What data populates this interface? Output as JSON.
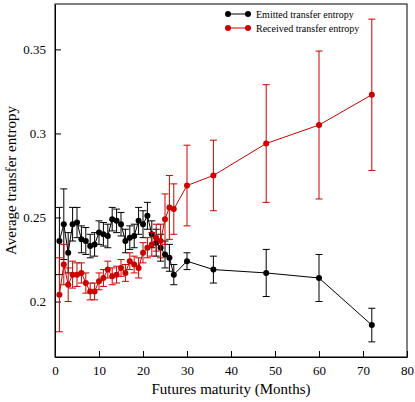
{
  "chart_data": {
    "type": "line",
    "x_label": "Futures maturity (Months)",
    "y_label": "Average transfer entropy",
    "x": [
      1,
      2,
      3,
      4,
      5,
      6,
      7,
      8,
      9,
      10,
      11,
      12,
      13,
      14,
      15,
      16,
      17,
      18,
      19,
      20,
      21,
      22,
      23,
      24,
      25,
      26,
      27,
      30,
      36,
      48,
      60,
      72
    ],
    "series": [
      {
        "name": "Emitted transfer entropy",
        "color": "#000000",
        "marker": "circle",
        "values": [
          0.236,
          0.246,
          0.229,
          0.246,
          0.247,
          0.237,
          0.236,
          0.233,
          0.234,
          0.241,
          0.24,
          0.239,
          0.249,
          0.248,
          0.246,
          0.236,
          0.238,
          0.239,
          0.248,
          0.246,
          0.251,
          0.24,
          0.235,
          0.232,
          0.228,
          0.226,
          0.216,
          0.224,
          0.219,
          0.217,
          0.214,
          0.186
        ],
        "errors": [
          0.02,
          0.021,
          0.012,
          0.01,
          0.009,
          0.008,
          0.008,
          0.007,
          0.007,
          0.007,
          0.007,
          0.007,
          0.007,
          0.007,
          0.007,
          0.007,
          0.007,
          0.007,
          0.008,
          0.008,
          0.008,
          0.008,
          0.008,
          0.008,
          0.008,
          0.008,
          0.006,
          0.005,
          0.008,
          0.014,
          0.014,
          0.01
        ]
      },
      {
        "name": "Received transfer entropy",
        "color": "#cc0000",
        "marker": "circle",
        "values": [
          0.204,
          0.222,
          0.21,
          0.216,
          0.216,
          0.217,
          0.211,
          0.206,
          0.206,
          0.212,
          0.214,
          0.219,
          0.215,
          0.216,
          0.22,
          0.217,
          0.224,
          0.222,
          0.22,
          0.229,
          0.232,
          0.234,
          0.238,
          0.236,
          0.249,
          0.256,
          0.255,
          0.269,
          0.275,
          0.294,
          0.305,
          0.323
        ],
        "errors": [
          0.022,
          0.012,
          0.01,
          0.008,
          0.007,
          0.006,
          0.006,
          0.005,
          0.005,
          0.005,
          0.005,
          0.005,
          0.005,
          0.005,
          0.005,
          0.005,
          0.005,
          0.005,
          0.006,
          0.006,
          0.006,
          0.007,
          0.008,
          0.01,
          0.015,
          0.019,
          0.015,
          0.024,
          0.021,
          0.035,
          0.044,
          0.045
        ]
      }
    ],
    "xlim": [
      0,
      80
    ],
    "xticks": [
      0,
      10,
      20,
      30,
      40,
      50,
      60,
      70,
      80
    ],
    "ylim": [
      0.167,
      0.377
    ],
    "yticks": [
      0.2,
      0.25,
      0.3,
      0.35
    ],
    "legend": "upper right",
    "grid": false
  }
}
